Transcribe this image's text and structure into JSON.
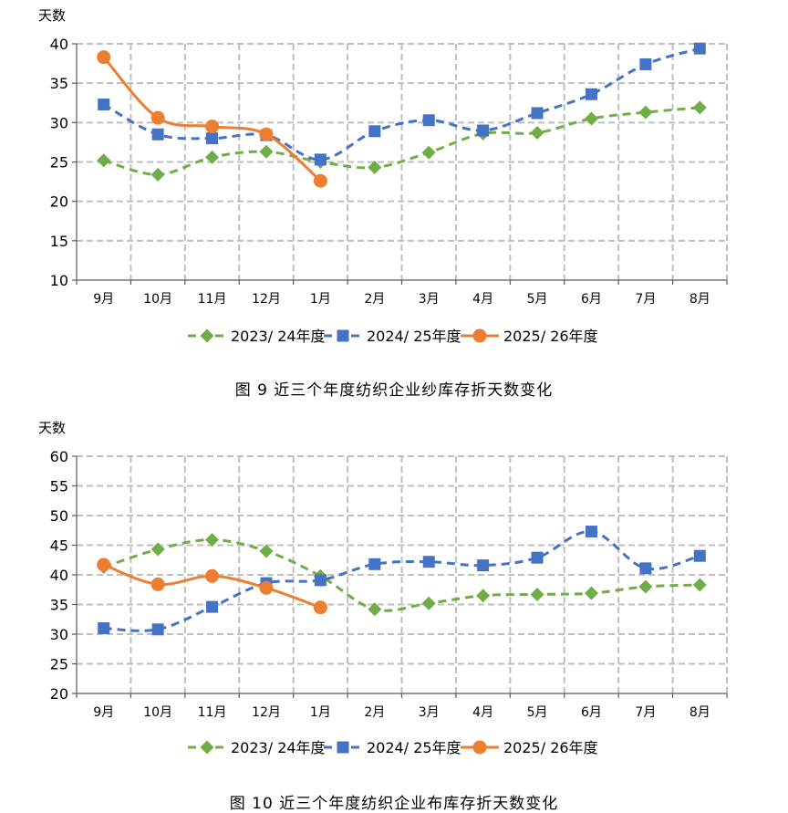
{
  "chart_data": [
    {
      "type": "line",
      "title": "图 9   近三个年度纺织企业纱库存折天数变化",
      "ylabel": "天数",
      "ylim": [
        10,
        40
      ],
      "yticks": [
        10,
        15,
        20,
        25,
        30,
        35,
        40
      ],
      "categories": [
        "9月",
        "10月",
        "11月",
        "12月",
        "1月",
        "2月",
        "3月",
        "4月",
        "5月",
        "6月",
        "7月",
        "8月"
      ],
      "grid": true,
      "legend": "bottom",
      "series": [
        {
          "name": "2023/ 24年度",
          "color": "#70AD47",
          "marker": "diamond",
          "dash": true,
          "values": [
            25.2,
            23.4,
            25.6,
            26.3,
            25.0,
            24.3,
            26.2,
            28.6,
            28.7,
            30.5,
            31.3,
            31.9
          ]
        },
        {
          "name": "2024/ 25年度",
          "color": "#4472C4",
          "marker": "square",
          "dash": true,
          "values": [
            32.3,
            28.5,
            28.0,
            28.4,
            25.3,
            28.9,
            30.3,
            29.0,
            31.2,
            33.6,
            37.4,
            39.4
          ]
        },
        {
          "name": "2025/ 26年度",
          "color": "#ED7D31",
          "marker": "circle",
          "dash": false,
          "values": [
            38.3,
            30.6,
            29.5,
            28.5,
            22.6,
            null,
            null,
            null,
            null,
            null,
            null,
            null
          ]
        }
      ]
    },
    {
      "type": "line",
      "title": "图 10   近三个年度纺织企业布库存折天数变化",
      "ylabel": "天数",
      "ylim": [
        20,
        60
      ],
      "yticks": [
        20,
        25,
        30,
        35,
        40,
        45,
        50,
        55,
        60
      ],
      "categories": [
        "9月",
        "10月",
        "11月",
        "12月",
        "1月",
        "2月",
        "3月",
        "4月",
        "5月",
        "6月",
        "7月",
        "8月"
      ],
      "grid": true,
      "legend": "bottom",
      "series": [
        {
          "name": "2023/ 24年度",
          "color": "#70AD47",
          "marker": "diamond",
          "dash": true,
          "values": [
            41.3,
            44.3,
            45.9,
            44.0,
            39.8,
            34.2,
            35.2,
            36.5,
            36.7,
            36.9,
            38.0,
            38.3
          ]
        },
        {
          "name": "2024/ 25年度",
          "color": "#4472C4",
          "marker": "square",
          "dash": true,
          "values": [
            31.0,
            30.8,
            34.6,
            38.6,
            39.1,
            41.8,
            42.2,
            41.6,
            42.9,
            47.3,
            41.1,
            43.2
          ]
        },
        {
          "name": "2025/ 26年度",
          "color": "#ED7D31",
          "marker": "circle",
          "dash": false,
          "values": [
            41.7,
            38.4,
            39.8,
            37.8,
            34.5,
            null,
            null,
            null,
            null,
            null,
            null,
            null
          ]
        }
      ]
    }
  ]
}
